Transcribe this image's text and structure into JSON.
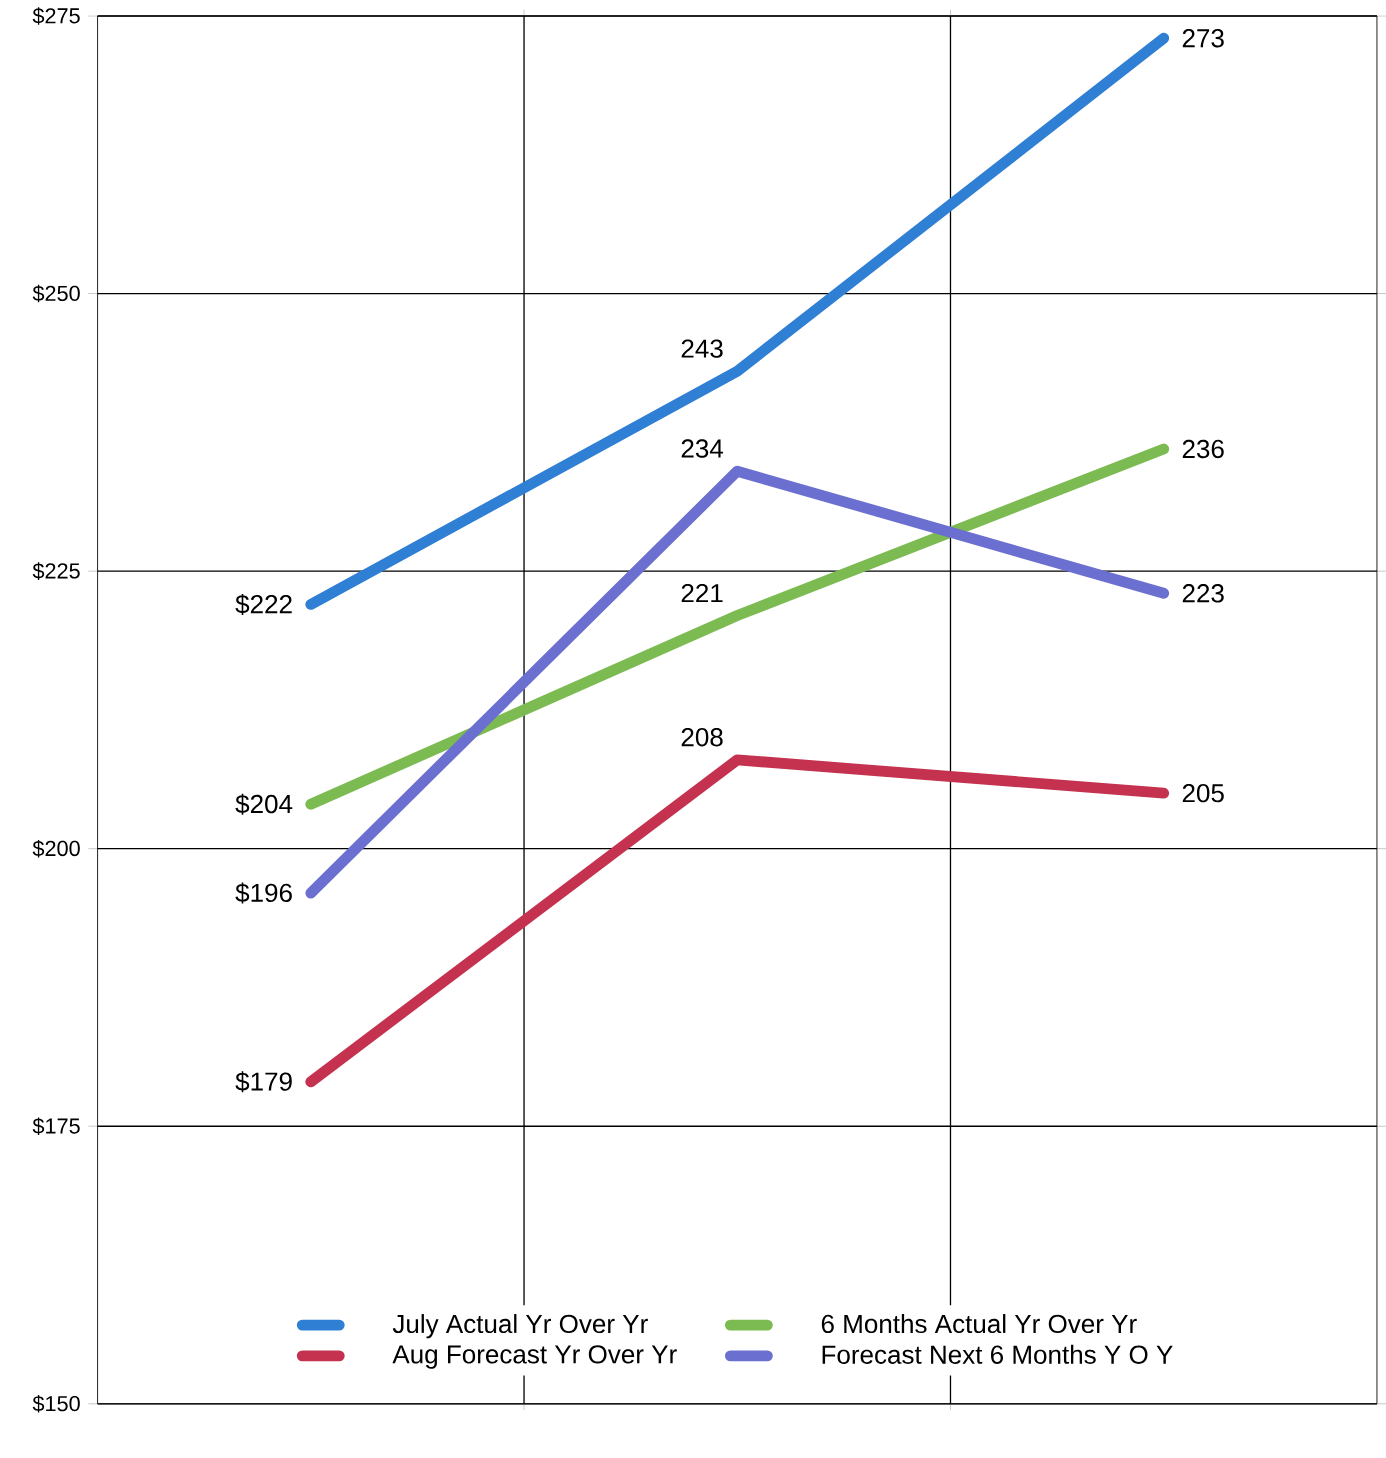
{
  "chart_data": {
    "type": "line",
    "categories": [
      null,
      null,
      null
    ],
    "series": [
      {
        "name": "July Actual Yr Over Yr",
        "color": "#2f7fd4",
        "values": [
          222,
          243,
          273
        ],
        "value_labels": [
          "$222",
          "243",
          "273"
        ]
      },
      {
        "name": "6 Months Actual Yr Over Yr",
        "color": "#7cbb52",
        "values": [
          204,
          221,
          236
        ],
        "value_labels": [
          "$204",
          "221",
          "236"
        ]
      },
      {
        "name": "Aug Forecast Yr Over Yr",
        "color": "#c4324f",
        "values": [
          179,
          208,
          205
        ],
        "value_labels": [
          "$179",
          "208",
          "205"
        ]
      },
      {
        "name": "Forecast Next 6 Months Y O Y",
        "color": "#6b6fd0",
        "values": [
          196,
          234,
          223
        ],
        "value_labels": [
          "$196",
          "234",
          "223"
        ]
      }
    ],
    "ylim": [
      150,
      275
    ],
    "yticks": [
      {
        "value": 150,
        "label": "$150"
      },
      {
        "value": 175,
        "label": "$175"
      },
      {
        "value": 200,
        "label": "$200"
      },
      {
        "value": 225,
        "label": "$225"
      },
      {
        "value": 250,
        "label": "$250"
      },
      {
        "value": 275,
        "label": "$275"
      }
    ],
    "grid": true,
    "legend": "bottom",
    "line_style": "solid"
  }
}
